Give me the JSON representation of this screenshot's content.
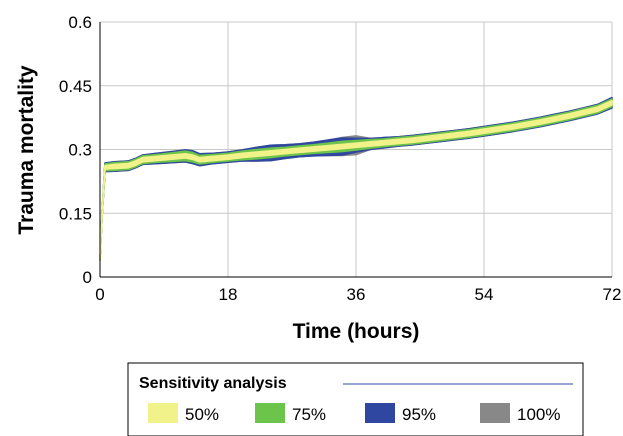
{
  "chart_data": {
    "type": "area",
    "title": "",
    "xlabel": "Time (hours)",
    "ylabel": "Trauma mortality",
    "xlim": [
      0,
      72
    ],
    "ylim": [
      0,
      0.6
    ],
    "x_ticks": [
      "0",
      "18",
      "36",
      "54",
      "72"
    ],
    "y_ticks": [
      "0",
      "0.15",
      "0.3",
      "0.45",
      "0.6"
    ],
    "grid": true,
    "legend_title": "Sensitivity analysis",
    "legend_position": "bottom",
    "x": [
      0,
      0.3,
      0.7,
      2,
      4,
      5,
      6,
      8,
      10,
      12,
      13,
      14,
      16,
      18,
      20,
      22,
      24,
      26,
      28,
      30,
      32,
      34,
      36,
      38,
      40,
      42,
      44,
      46,
      48,
      50,
      52,
      54,
      56,
      58,
      60,
      62,
      64,
      66,
      68,
      70,
      72
    ],
    "y": [
      0.04,
      0.15,
      0.258,
      0.26,
      0.262,
      0.268,
      0.276,
      0.279,
      0.282,
      0.285,
      0.282,
      0.276,
      0.279,
      0.282,
      0.286,
      0.289,
      0.292,
      0.295,
      0.298,
      0.301,
      0.304,
      0.307,
      0.31,
      0.313,
      0.316,
      0.319,
      0.322,
      0.326,
      0.33,
      0.334,
      0.338,
      0.343,
      0.348,
      0.353,
      0.359,
      0.365,
      0.372,
      0.379,
      0.387,
      0.395,
      0.41
    ],
    "series": [
      {
        "name": "50%",
        "color": "#f2f28a",
        "half_width": [
          0,
          0.002,
          0.004,
          0.005,
          0.005,
          0.005,
          0.005,
          0.005,
          0.005,
          0.005,
          0.005,
          0.005,
          0.005,
          0.005,
          0.005,
          0.005,
          0.005,
          0.005,
          0.005,
          0.005,
          0.005,
          0.005,
          0.005,
          0.005,
          0.005,
          0.005,
          0.005,
          0.005,
          0.005,
          0.005,
          0.005,
          0.005,
          0.005,
          0.005,
          0.005,
          0.005,
          0.005,
          0.005,
          0.005,
          0.005,
          0.005
        ]
      },
      {
        "name": "75%",
        "color": "#6cc44a",
        "half_width": [
          0,
          0.004,
          0.008,
          0.009,
          0.009,
          0.009,
          0.009,
          0.009,
          0.01,
          0.011,
          0.011,
          0.01,
          0.009,
          0.009,
          0.01,
          0.011,
          0.011,
          0.01,
          0.01,
          0.01,
          0.011,
          0.012,
          0.011,
          0.01,
          0.009,
          0.009,
          0.009,
          0.009,
          0.009,
          0.009,
          0.009,
          0.009,
          0.009,
          0.009,
          0.009,
          0.009,
          0.009,
          0.009,
          0.009,
          0.009,
          0.009
        ]
      },
      {
        "name": "95%",
        "color": "#2f47a0",
        "half_width": [
          0,
          0.005,
          0.01,
          0.011,
          0.011,
          0.011,
          0.011,
          0.012,
          0.013,
          0.014,
          0.015,
          0.014,
          0.012,
          0.012,
          0.013,
          0.016,
          0.018,
          0.016,
          0.015,
          0.016,
          0.018,
          0.02,
          0.016,
          0.013,
          0.012,
          0.011,
          0.011,
          0.011,
          0.011,
          0.011,
          0.011,
          0.011,
          0.011,
          0.011,
          0.011,
          0.011,
          0.011,
          0.011,
          0.011,
          0.011,
          0.012
        ]
      },
      {
        "name": "100%",
        "color": "#888888",
        "half_width": [
          0,
          0.005,
          0.01,
          0.011,
          0.011,
          0.011,
          0.011,
          0.012,
          0.013,
          0.014,
          0.015,
          0.014,
          0.012,
          0.012,
          0.013,
          0.016,
          0.018,
          0.016,
          0.015,
          0.016,
          0.018,
          0.021,
          0.022,
          0.013,
          0.012,
          0.011,
          0.011,
          0.011,
          0.011,
          0.011,
          0.011,
          0.011,
          0.011,
          0.011,
          0.011,
          0.011,
          0.011,
          0.011,
          0.011,
          0.011,
          0.012
        ]
      }
    ]
  }
}
